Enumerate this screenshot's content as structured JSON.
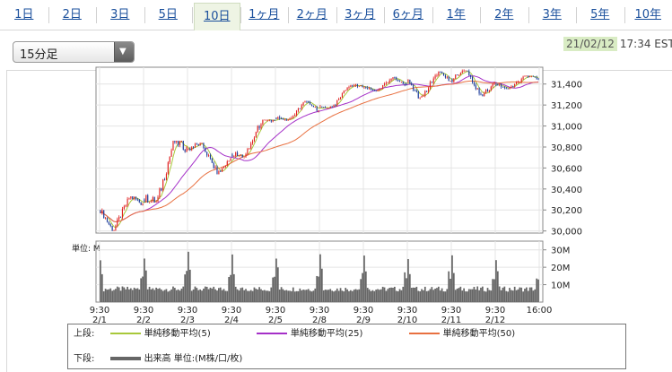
{
  "tabs": [
    {
      "label": "1日",
      "selected": false
    },
    {
      "label": "2日",
      "selected": false
    },
    {
      "label": "3日",
      "selected": false
    },
    {
      "label": "5日",
      "selected": false
    },
    {
      "label": "10日",
      "selected": true
    },
    {
      "label": "1ヶ月",
      "selected": false
    },
    {
      "label": "2ヶ月",
      "selected": false
    },
    {
      "label": "3ヶ月",
      "selected": false
    },
    {
      "label": "6ヶ月",
      "selected": false
    },
    {
      "label": "1年",
      "selected": false
    },
    {
      "label": "2年",
      "selected": false
    },
    {
      "label": "3年",
      "selected": false
    },
    {
      "label": "5年",
      "selected": false
    },
    {
      "label": "10年",
      "selected": false
    }
  ],
  "interval_select": {
    "value": "15分足",
    "icon": "chevron-down-icon"
  },
  "timestamp": {
    "date": "21/02/12",
    "time": "17:34 EST"
  },
  "chart_data": {
    "type": "candlestick",
    "price_axis": {
      "ticks": [
        30000,
        30200,
        30400,
        30600,
        30800,
        31000,
        31200,
        31400
      ],
      "tick_labels": [
        "30,000",
        "30,200",
        "30,400",
        "30,600",
        "30,800",
        "31,000",
        "31,200",
        "31,400"
      ],
      "ylim": [
        29980,
        31560
      ]
    },
    "volume_axis": {
      "unit_label": "単位: M",
      "ticks": [
        10,
        20,
        30
      ],
      "tick_labels": [
        "10M",
        "20M",
        "30M"
      ],
      "ylim": [
        0,
        35
      ]
    },
    "x_labels": [
      {
        "time": "9:30",
        "date": "2/1"
      },
      {
        "time": "9:30",
        "date": "2/2"
      },
      {
        "time": "9:30",
        "date": "2/3"
      },
      {
        "time": "9:30",
        "date": "2/4"
      },
      {
        "time": "9:30",
        "date": "2/5"
      },
      {
        "time": "9:30",
        "date": "2/8"
      },
      {
        "time": "9:30",
        "date": "2/9"
      },
      {
        "time": "9:30",
        "date": "2/10"
      },
      {
        "time": "9:30",
        "date": "2/11"
      },
      {
        "time": "9:30",
        "date": "2/12"
      },
      {
        "time": "16:00",
        "date": ""
      }
    ],
    "days": [
      {
        "date": "2/1",
        "open": 30200,
        "high": 30330,
        "low": 30000,
        "close": 30260
      },
      {
        "date": "2/2",
        "open": 30300,
        "high": 30860,
        "low": 30270,
        "close": 30800
      },
      {
        "date": "2/3",
        "open": 30780,
        "high": 30840,
        "low": 30540,
        "close": 30690
      },
      {
        "date": "2/4",
        "open": 30730,
        "high": 31060,
        "low": 30700,
        "close": 31050
      },
      {
        "date": "2/5",
        "open": 31080,
        "high": 31240,
        "low": 31050,
        "close": 31150
      },
      {
        "date": "2/8",
        "open": 31180,
        "high": 31400,
        "low": 31170,
        "close": 31370
      },
      {
        "date": "2/9",
        "open": 31370,
        "high": 31470,
        "low": 31330,
        "close": 31390
      },
      {
        "date": "2/10",
        "open": 31420,
        "high": 31520,
        "low": 31250,
        "close": 31430
      },
      {
        "date": "2/11",
        "open": 31440,
        "high": 31540,
        "low": 31280,
        "close": 31420
      },
      {
        "date": "2/12",
        "open": 31400,
        "high": 31480,
        "low": 31350,
        "close": 31450
      }
    ],
    "series": [
      {
        "name": "単純移動平均(5)",
        "color": "#a8c83a"
      },
      {
        "name": "単純移動平均(25)",
        "color": "#a530c8"
      },
      {
        "name": "単純移動平均(50)",
        "color": "#e87040"
      }
    ],
    "volume_series": {
      "name": "出来高 単位:(M株/口/枚)",
      "color": "#666666"
    },
    "candle_colors": {
      "up": "#e02020",
      "down": "#1a3a9a"
    }
  },
  "legend": {
    "upper_label": "上段:",
    "lower_label": "下段:",
    "items": [
      "単純移動平均(5)",
      "単純移動平均(25)",
      "単純移動平均(50)"
    ],
    "volume_item": "出来高 単位:(M株/口/枚)"
  }
}
